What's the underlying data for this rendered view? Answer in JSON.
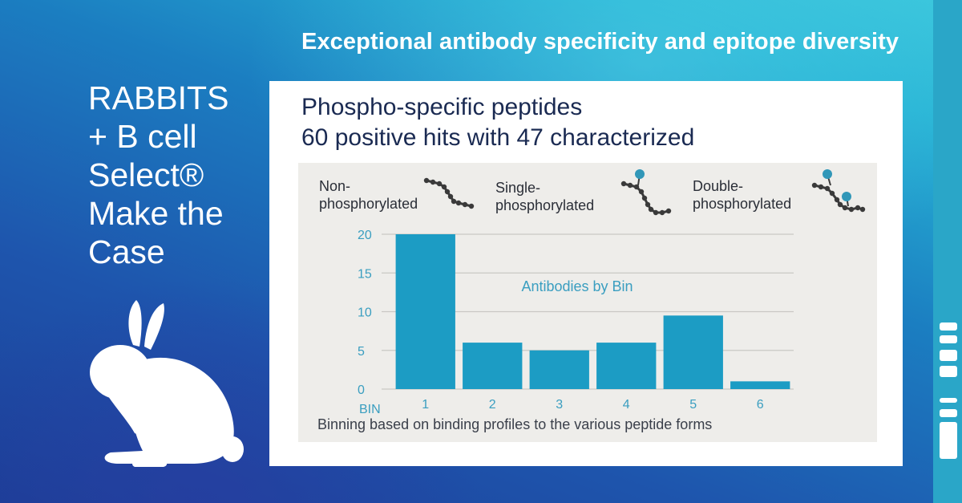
{
  "headline": "Exceptional antibody specificity and epitope diversity",
  "left_title": [
    "RABBITS",
    "+ B cell",
    "Select®",
    "Make the",
    "Case"
  ],
  "card": {
    "title_line1": "Phospho-specific peptides",
    "title_line2": "60 positive hits with 47 characterized"
  },
  "legend": {
    "non": [
      "Non-",
      "phosphorylated"
    ],
    "single": [
      "Single-",
      "phosphorylated"
    ],
    "double": [
      "Double-",
      "phosphorylated"
    ]
  },
  "colors": {
    "bar": "#1c9cc4",
    "phospho_dot": "#3197b8",
    "chain": "#3a3a3a",
    "grid": "#c9c8c4",
    "axis_text": "#3a9ec0"
  },
  "chart_data": {
    "type": "bar",
    "title": "Antibodies by Bin",
    "xlabel": "BIN",
    "categories": [
      "1",
      "2",
      "3",
      "4",
      "5",
      "6"
    ],
    "values": [
      20,
      6,
      5,
      6,
      9.5,
      1
    ],
    "yticks": [
      0,
      5,
      10,
      15,
      20
    ],
    "ylim": [
      0,
      20
    ],
    "grid": true,
    "caption": "Binning based on binding profiles to the various peptide forms"
  }
}
